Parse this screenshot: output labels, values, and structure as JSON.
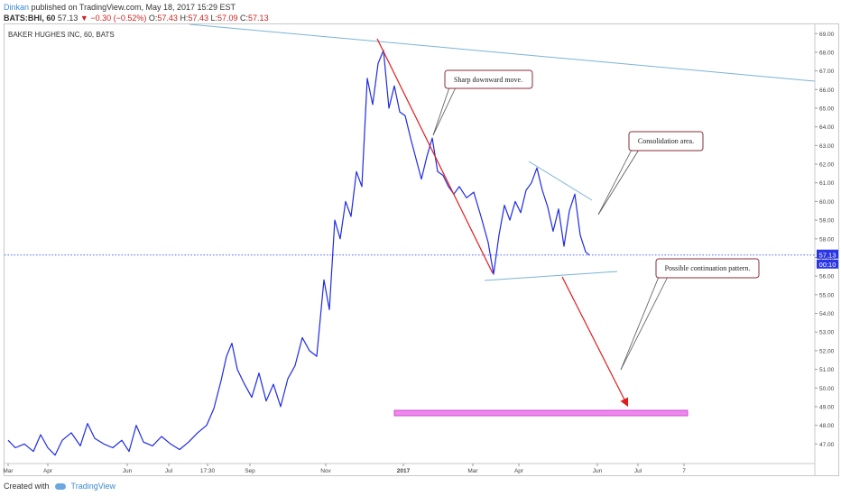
{
  "header": {
    "author": "Dinkan",
    "published": "published on TradingView.com, May 18, 2017 15:29 EST"
  },
  "ticker": {
    "symbol": "BATS:BHI, 60",
    "last": "57.13",
    "change": "▼ −0.30 (−0.52%)",
    "ohlc": {
      "o_label": "O:",
      "o": "57.43",
      "h_label": "H:",
      "h": "57.43",
      "l_label": "L:",
      "l": "57.09",
      "c_label": "C:",
      "c": "57.13"
    }
  },
  "chart_data": {
    "type": "line",
    "title": "BAKER HUGHES INC, 60, BATS",
    "yticks": [
      "47.00",
      "48.00",
      "49.00",
      "50.00",
      "51.00",
      "52.00",
      "53.00",
      "54.00",
      "55.00",
      "56.00",
      "57.00",
      "58.00",
      "59.00",
      "60.00",
      "61.00",
      "62.00",
      "63.00",
      "64.00",
      "65.00",
      "66.00",
      "67.00",
      "68.00",
      "69.00"
    ],
    "xtick_labels": [
      "Mar",
      "Apr",
      "Jun",
      "Jul",
      "17:30",
      "Sep",
      "Nov",
      "2017",
      "Mar",
      "Apr",
      "Jun",
      "Jul",
      "7"
    ],
    "ylim": [
      46.0,
      69.4
    ],
    "series": [
      {
        "x": [
          0,
          8,
          18,
          28,
          36,
          44,
          52,
          60,
          70,
          80,
          88,
          96,
          106,
          116,
          126,
          134,
          142,
          150,
          160,
          170,
          180,
          190,
          200,
          210,
          220,
          228,
          236,
          242,
          248,
          254,
          262,
          270,
          278,
          286,
          294,
          302,
          310,
          318,
          326,
          334,
          342,
          350,
          356,
          362,
          368,
          374,
          380,
          386,
          392,
          398,
          404,
          410,
          416,
          422,
          428,
          434,
          440,
          446,
          452,
          458,
          464,
          470,
          476,
          482,
          488,
          494,
          500,
          508,
          516,
          524,
          532,
          538,
          544,
          550,
          556,
          562,
          568,
          574,
          580,
          586,
          592,
          598,
          604,
          610,
          616,
          622,
          628,
          634,
          640,
          644
        ],
        "y": [
          47.2,
          46.8,
          47.0,
          46.6,
          47.5,
          46.8,
          46.4,
          47.2,
          47.6,
          46.9,
          48.1,
          47.3,
          47.0,
          46.8,
          47.2,
          46.6,
          48.0,
          47.1,
          46.9,
          47.4,
          47.0,
          46.7,
          47.1,
          47.6,
          48.0,
          48.9,
          50.4,
          51.7,
          52.4,
          51.0,
          50.2,
          49.5,
          50.8,
          49.3,
          50.2,
          49.0,
          50.5,
          51.2,
          52.7,
          52.0,
          51.7,
          55.8,
          54.2,
          59.0,
          58.0,
          60.0,
          59.2,
          61.6,
          60.8,
          66.6,
          65.2,
          67.4,
          68.1,
          65.0,
          66.2,
          64.8,
          64.6,
          63.4,
          62.3,
          61.2,
          62.4,
          63.4,
          61.6,
          61.4,
          60.8,
          60.4,
          60.8,
          60.2,
          60.5,
          59.2,
          57.8,
          56.1,
          58.2,
          59.8,
          59.0,
          60.0,
          59.4,
          60.6,
          61.0,
          61.8,
          60.6,
          59.7,
          58.4,
          59.6,
          57.6,
          59.5,
          60.4,
          58.2,
          57.3,
          57.13
        ]
      }
    ],
    "last_price": "57.13",
    "countdown": "00:10",
    "annotations": [
      {
        "text": "Sharp downward move."
      },
      {
        "text": "Consolidation area."
      },
      {
        "text": "Possible continuation pattern."
      }
    ]
  },
  "footer": {
    "created_with": "Created with",
    "brand": "TradingView"
  },
  "colors": {
    "price_line": "#1f2be6",
    "trend_red": "#e01d1d",
    "trend_blue": "#7ab3d6",
    "target_band": "#ee88ee",
    "band_border": "#d24bd2"
  }
}
